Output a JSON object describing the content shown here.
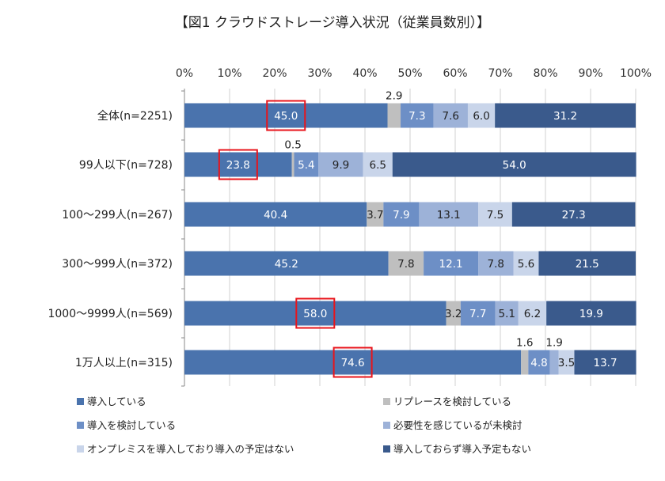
{
  "chart_data": {
    "type": "bar",
    "orientation": "horizontal",
    "stacked": true,
    "title": "【図1 クラウドストレージ導入状況（従業員数別）】",
    "xlim": [
      0,
      100
    ],
    "xticks": [
      "0%",
      "10%",
      "20%",
      "30%",
      "40%",
      "50%",
      "60%",
      "70%",
      "80%",
      "90%",
      "100%"
    ],
    "categories": [
      "全体(n=2251)",
      "99人以下(n=728)",
      "100〜299人(n=267)",
      "300〜999人(n=372)",
      "1000〜9999人(n=569)",
      "1万人以上(n=315)"
    ],
    "series": [
      {
        "name": "導入している",
        "color": "#4a73ad",
        "values": [
          45.0,
          23.8,
          40.4,
          45.2,
          58.0,
          74.6
        ]
      },
      {
        "name": "リプレースを検討している",
        "color": "#bfbfbf",
        "values": [
          2.9,
          0.5,
          3.7,
          7.8,
          3.2,
          1.6
        ]
      },
      {
        "name": "導入を検討している",
        "color": "#6d8fc6",
        "values": [
          7.3,
          5.4,
          7.9,
          12.1,
          7.7,
          4.8
        ]
      },
      {
        "name": "必要性を感じているが未検討",
        "color": "#9db2d8",
        "values": [
          7.6,
          9.9,
          13.1,
          7.8,
          5.1,
          1.9
        ]
      },
      {
        "name": "オンプレミスを導入しており導入の予定はない",
        "color": "#c9d5ea",
        "values": [
          6.0,
          6.5,
          7.5,
          5.6,
          6.2,
          3.5
        ]
      },
      {
        "name": "導入しておらず導入予定もない",
        "color": "#3a5a8c",
        "values": [
          31.2,
          54.0,
          27.3,
          21.5,
          19.9,
          13.7
        ]
      }
    ],
    "label_text": [
      [
        "45.0",
        "2.9",
        "7.3",
        "7.6",
        "6.0",
        "31.2"
      ],
      [
        "23.8",
        "0.5",
        "5.4",
        "9.9",
        "6.5",
        "54.0"
      ],
      [
        "40.4",
        "3.7",
        "7.9",
        "13.1",
        "7.5",
        "27.3"
      ],
      [
        "45.2",
        "7.8",
        "12.1",
        "7.8",
        "5.6",
        "21.5"
      ],
      [
        "58.0",
        "3.2",
        "7.7",
        "5.1",
        "6.2",
        "19.9"
      ],
      [
        "74.6",
        "1.6",
        "4.8",
        "1.9",
        "3.5",
        "13.7"
      ]
    ],
    "highlighted_first_segment": [
      true,
      true,
      false,
      false,
      true,
      true
    ]
  }
}
